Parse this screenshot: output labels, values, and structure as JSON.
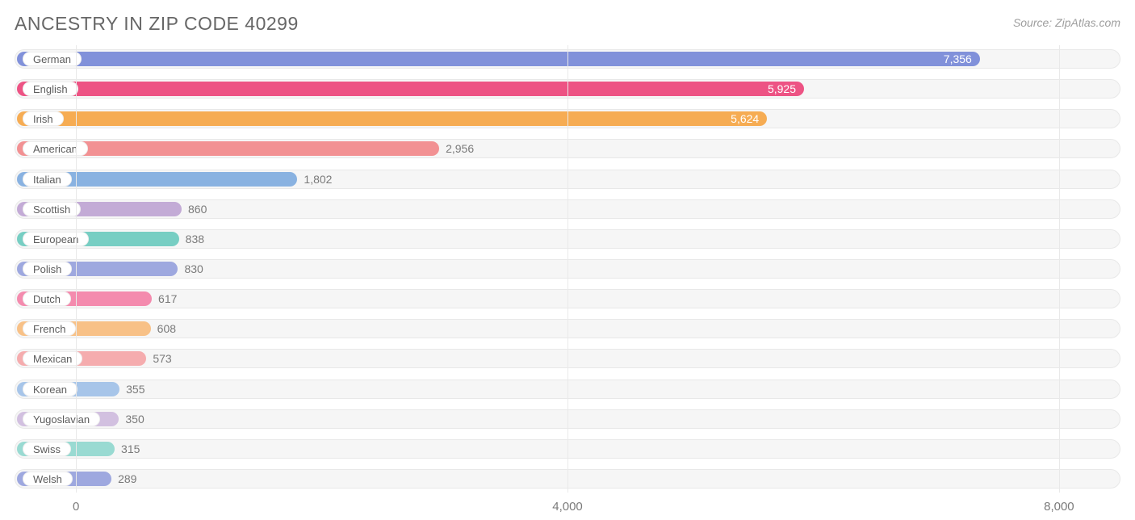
{
  "title": "ANCESTRY IN ZIP CODE 40299",
  "source": "Source: ZipAtlas.com",
  "chart": {
    "type": "bar-horizontal",
    "x_min": -500,
    "x_max": 8500,
    "ticks": [
      {
        "value": 0,
        "label": "0"
      },
      {
        "value": 4000,
        "label": "4,000"
      },
      {
        "value": 8000,
        "label": "8,000"
      }
    ],
    "track_bg": "#f6f6f6",
    "track_border": "#e8e8e8",
    "grid_color": "#e9e9e9",
    "label_inside_threshold": 4000,
    "title_color": "#676767",
    "title_fontsize": 23,
    "source_color": "#9e9e9e",
    "tick_color": "#7a7a7a",
    "value_inside_color": "#ffffff",
    "value_outside_color": "#7a7a7a",
    "rows": [
      {
        "label": "German",
        "value": 7356,
        "display": "7,356",
        "color": "#8191da"
      },
      {
        "label": "English",
        "value": 5925,
        "display": "5,925",
        "color": "#ed5384"
      },
      {
        "label": "Irish",
        "value": 5624,
        "display": "5,624",
        "color": "#f6ac53"
      },
      {
        "label": "American",
        "value": 2956,
        "display": "2,956",
        "color": "#f29193"
      },
      {
        "label": "Italian",
        "value": 1802,
        "display": "1,802",
        "color": "#89b2e1"
      },
      {
        "label": "Scottish",
        "value": 860,
        "display": "860",
        "color": "#c3abd6"
      },
      {
        "label": "European",
        "value": 838,
        "display": "838",
        "color": "#77cec3"
      },
      {
        "label": "Polish",
        "value": 830,
        "display": "830",
        "color": "#9ea8df"
      },
      {
        "label": "Dutch",
        "value": 617,
        "display": "617",
        "color": "#f48bae"
      },
      {
        "label": "French",
        "value": 608,
        "display": "608",
        "color": "#f8c187"
      },
      {
        "label": "Mexican",
        "value": 573,
        "display": "573",
        "color": "#f5acae"
      },
      {
        "label": "Korean",
        "value": 355,
        "display": "355",
        "color": "#a7c5e9"
      },
      {
        "label": "Yugoslavian",
        "value": 350,
        "display": "350",
        "color": "#d2c0e0"
      },
      {
        "label": "Swiss",
        "value": 315,
        "display": "315",
        "color": "#99dad2"
      },
      {
        "label": "Welsh",
        "value": 289,
        "display": "289",
        "color": "#9ea8df"
      }
    ]
  }
}
